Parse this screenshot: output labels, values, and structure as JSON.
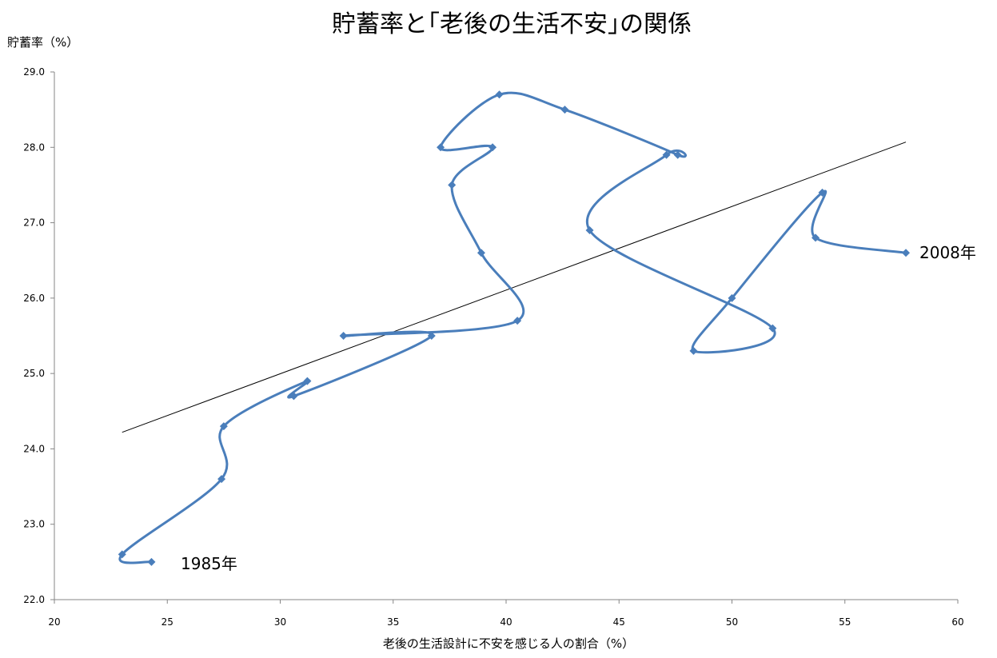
{
  "chart_data": {
    "type": "scatter",
    "title": "貯蓄率と｢老後の生活不安｣の関係",
    "xlabel": "老後の生活設計に不安を感じる人の割合（%）",
    "ylabel": "貯蓄率（%）",
    "xlim": [
      20,
      60
    ],
    "ylim": [
      22.0,
      29.0
    ],
    "x_ticks": [
      "20",
      "25",
      "30",
      "35",
      "40",
      "45",
      "50",
      "55",
      "60"
    ],
    "y_ticks": [
      "22.0",
      "23.0",
      "24.0",
      "25.0",
      "26.0",
      "27.0",
      "28.0",
      "29.0"
    ],
    "grid": false,
    "legend": "none",
    "series_color": "#4a7ebb",
    "trend_color": "#000000",
    "series": [
      {
        "points": [
          [
            24.3,
            22.5
          ],
          [
            23.0,
            22.6
          ],
          [
            27.4,
            23.6
          ],
          [
            27.5,
            24.3
          ],
          [
            31.2,
            24.9
          ],
          [
            30.6,
            24.7
          ],
          [
            36.7,
            25.5
          ],
          [
            32.8,
            25.5
          ],
          [
            40.5,
            25.7
          ],
          [
            38.9,
            26.6
          ],
          [
            37.6,
            27.5
          ],
          [
            39.4,
            28.0
          ],
          [
            37.1,
            28.0
          ],
          [
            39.7,
            28.7
          ],
          [
            42.6,
            28.5
          ],
          [
            47.6,
            27.9
          ],
          [
            47.1,
            27.9
          ],
          [
            43.7,
            26.9
          ],
          [
            51.8,
            25.6
          ],
          [
            48.3,
            25.3
          ],
          [
            50.0,
            26.0
          ],
          [
            54.0,
            27.4
          ],
          [
            53.7,
            26.8
          ],
          [
            57.7,
            26.6
          ]
        ]
      }
    ],
    "trendline": [
      [
        23.0,
        24.22
      ],
      [
        57.7,
        28.07
      ]
    ],
    "annotations": {
      "start": "1985年",
      "end": "2008年"
    }
  }
}
